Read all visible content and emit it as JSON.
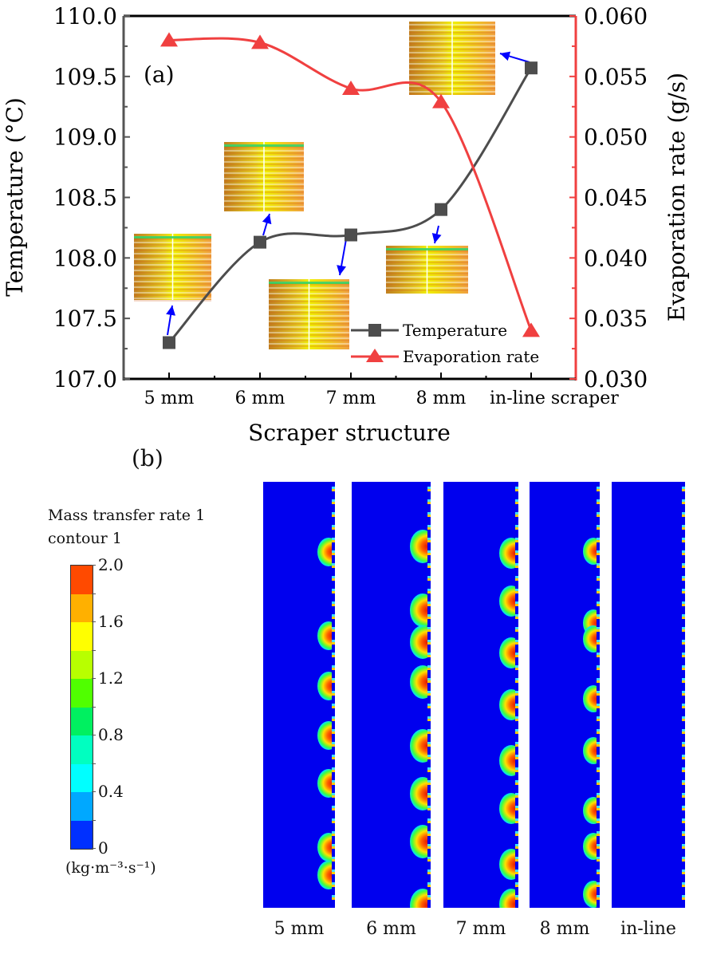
{
  "chart_data": [
    {
      "type": "line",
      "panel": "(a)",
      "title": "",
      "xlabel": "Scraper structure",
      "ylabel": "Temperature (°C)",
      "y2label": "Evaporation rate (g/s)",
      "categories": [
        "5 mm",
        "6 mm",
        "7 mm",
        "8 mm",
        "in-line scraper"
      ],
      "ylim": [
        107.0,
        110.0
      ],
      "y2lim": [
        0.03,
        0.06
      ],
      "yticks": [
        "107.0",
        "107.5",
        "108.0",
        "108.5",
        "109.0",
        "109.5",
        "110.0"
      ],
      "y2ticks": [
        "0.030",
        "0.035",
        "0.040",
        "0.045",
        "0.050",
        "0.055",
        "0.060"
      ],
      "grid": false,
      "legend_position": "bottom-right",
      "series": [
        {
          "name": "Temperature",
          "axis": "left",
          "marker": "square",
          "color": "#4d4d4d",
          "values": [
            107.3,
            108.13,
            108.19,
            108.4,
            109.57
          ]
        },
        {
          "name": "Evaporation rate",
          "axis": "right",
          "marker": "triangle",
          "color": "#f04040",
          "values": [
            0.058,
            0.0578,
            0.054,
            0.0529,
            0.034
          ]
        }
      ],
      "annotations": [
        "temperature field inset images for each scraper structure, linked by blue arrows"
      ]
    },
    {
      "type": "heatmap",
      "panel": "(b)",
      "colorbar_title": [
        "Mass transfer rate 1",
        "contour 1"
      ],
      "colorbar_unit": "(kg·m⁻³·s⁻¹)",
      "colorbar_range": [
        0,
        2.0
      ],
      "colorbar_ticks": [
        "0",
        "0.4",
        "0.8",
        "1.2",
        "1.6",
        "2.0"
      ],
      "colorbar_colors": [
        "#ff4a00",
        "#ffb000",
        "#ffff00",
        "#b8ff00",
        "#50ff00",
        "#00f060",
        "#00ffc0",
        "#00ffff",
        "#00a8ff",
        "#0030ff"
      ],
      "categories": [
        "5 mm",
        "6 mm",
        "7 mm",
        "8 mm",
        "in-line"
      ]
    }
  ],
  "colors": {
    "temperature": "#4d4d4d",
    "evaporation": "#f04040",
    "arrow": "#0000ff",
    "field_bg": "#0000ee"
  }
}
